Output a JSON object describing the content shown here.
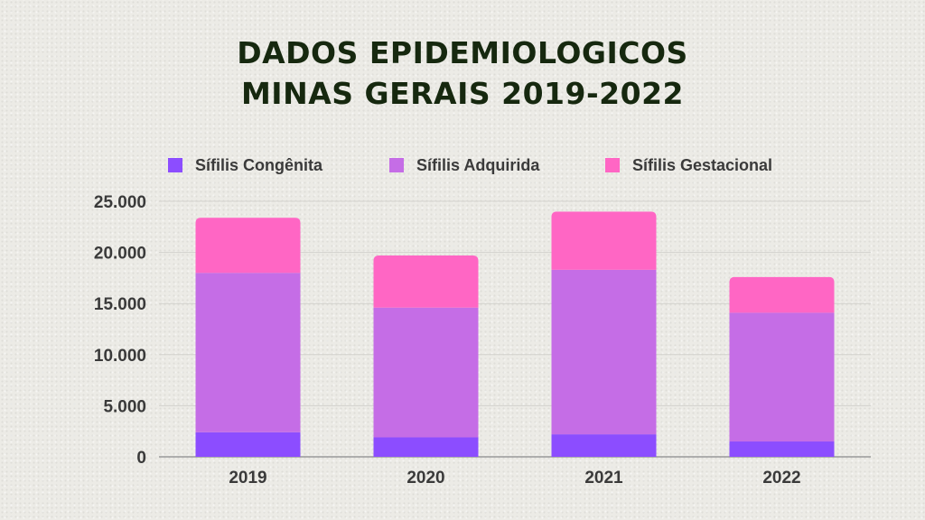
{
  "title_lines": [
    "DADOS EPIDEMIOLOGICOS",
    "MINAS GERAIS 2019-2022"
  ],
  "colors": {
    "congenita": "#8c4dff",
    "adquirida": "#c56de6",
    "gestacional": "#ff66c4",
    "axis_text": "#3a3a3a",
    "title": "#16280f"
  },
  "chart_data": {
    "type": "bar",
    "stacked": true,
    "categories": [
      "2019",
      "2020",
      "2021",
      "2022"
    ],
    "series": [
      {
        "name": "Sífilis Congênita",
        "values": [
          2400,
          1900,
          2200,
          1500
        ]
      },
      {
        "name": "Sífilis Adquirida",
        "values": [
          15600,
          12700,
          16100,
          12600
        ]
      },
      {
        "name": "Sífilis Gestacional",
        "values": [
          5400,
          5100,
          5700,
          3500
        ]
      }
    ],
    "y_ticks": [
      "0",
      "5.000",
      "10.000",
      "15.000",
      "20.000",
      "25.000"
    ],
    "ylim": [
      0,
      25000
    ],
    "grid": true,
    "legend_position": "top"
  }
}
